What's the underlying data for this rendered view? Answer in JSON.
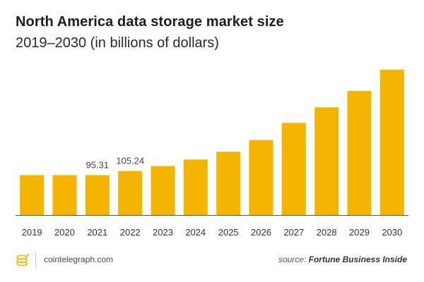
{
  "header": {
    "title": "North America data storage market size",
    "subtitle": "2019–2030 (in billions of dollars)"
  },
  "footer": {
    "site": "cointelegraph.com",
    "source_prefix": "source:",
    "source_name": "Fortune Business Inside",
    "logo_icon": "coin-stack-icon"
  },
  "colors": {
    "bar": "#F4B400",
    "axis": "#555555",
    "accent": "#F4B400"
  },
  "chart_data": {
    "type": "bar",
    "title": "North America data storage market size",
    "subtitle": "2019–2030 (in billions of dollars)",
    "xlabel": "",
    "ylabel": "",
    "categories": [
      "2019",
      "2020",
      "2021",
      "2022",
      "2023",
      "2024",
      "2025",
      "2026",
      "2027",
      "2028",
      "2029",
      "2030"
    ],
    "values": [
      95.31,
      95.31,
      95.31,
      105.24,
      117.0,
      132.5,
      151.0,
      179.0,
      220.0,
      257.0,
      296.0,
      347.0
    ],
    "data_labels": [
      {
        "category": "2021",
        "text": "95.31"
      },
      {
        "category": "2022",
        "text": "105.24"
      }
    ],
    "ylim": [
      0,
      350
    ],
    "grid": false,
    "legend": "none"
  }
}
